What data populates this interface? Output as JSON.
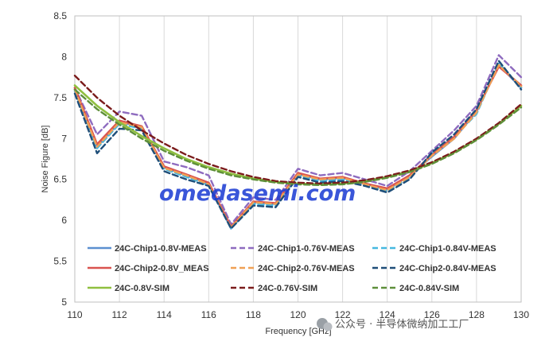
{
  "chart_data": {
    "type": "line",
    "xlabel": "Frequency [GHz]",
    "ylabel": "Noise Figure [dB]",
    "xlim": [
      110,
      130
    ],
    "ylim": [
      5,
      8.5
    ],
    "x_ticks": [
      "110",
      "112",
      "114",
      "116",
      "118",
      "120",
      "122",
      "124",
      "126",
      "128",
      "130"
    ],
    "y_ticks": [
      "5",
      "5.5",
      "6",
      "6.5",
      "7",
      "7.5",
      "8",
      "8.5"
    ],
    "grid": "vertical",
    "legend_placement": "bottom-inside",
    "series": [
      {
        "name": "24C-Chip1-0.8V-MEAS",
        "color": "#5b8fd0",
        "dash": "solid",
        "x": [
          110,
          111,
          112,
          113,
          114,
          115,
          116,
          117,
          118,
          119,
          120,
          121,
          122,
          123,
          124,
          125,
          126,
          127,
          128,
          129,
          130
        ],
        "y": [
          7.6,
          6.9,
          7.2,
          7.15,
          6.65,
          6.55,
          6.45,
          5.9,
          6.22,
          6.2,
          6.57,
          6.5,
          6.52,
          6.45,
          6.38,
          6.55,
          6.78,
          7.0,
          7.33,
          7.9,
          7.62
        ]
      },
      {
        "name": "24C-Chip1-0.76V-MEAS",
        "color": "#8e6bbf",
        "dash": "dash",
        "x": [
          110,
          111,
          112,
          113,
          114,
          115,
          116,
          117,
          118,
          119,
          120,
          121,
          122,
          123,
          124,
          125,
          126,
          127,
          128,
          129,
          130
        ],
        "y": [
          7.62,
          7.05,
          7.33,
          7.28,
          6.72,
          6.65,
          6.55,
          5.95,
          6.28,
          6.25,
          6.63,
          6.55,
          6.58,
          6.5,
          6.42,
          6.6,
          6.85,
          7.1,
          7.4,
          8.02,
          7.75
        ]
      },
      {
        "name": "24C-Chip1-0.84V-MEAS",
        "color": "#46b8e0",
        "dash": "dash",
        "x": [
          110,
          111,
          112,
          113,
          114,
          115,
          116,
          117,
          118,
          119,
          120,
          121,
          122,
          123,
          124,
          125,
          126,
          127,
          128,
          129,
          130
        ],
        "y": [
          7.58,
          6.88,
          7.18,
          7.12,
          6.63,
          6.53,
          6.43,
          5.9,
          6.2,
          6.18,
          6.55,
          6.48,
          6.5,
          6.43,
          6.36,
          6.52,
          6.82,
          7.02,
          7.3,
          7.92,
          7.63
        ]
      },
      {
        "name": "24C-Chip2-0.8V_MEAS",
        "color": "#d9534f",
        "dash": "solid",
        "x": [
          110,
          111,
          112,
          113,
          114,
          115,
          116,
          117,
          118,
          119,
          120,
          121,
          122,
          123,
          124,
          125,
          126,
          127,
          128,
          129,
          130
        ],
        "y": [
          7.62,
          6.93,
          7.22,
          7.15,
          6.66,
          6.56,
          6.46,
          5.92,
          6.23,
          6.21,
          6.58,
          6.51,
          6.53,
          6.45,
          6.39,
          6.55,
          6.8,
          7.02,
          7.35,
          7.88,
          7.65
        ]
      },
      {
        "name": "24C-Chip2-0.76V-MEAS",
        "color": "#f0a054",
        "dash": "dash",
        "x": [
          110,
          111,
          112,
          113,
          114,
          115,
          116,
          117,
          118,
          119,
          120,
          121,
          122,
          123,
          124,
          125,
          126,
          127,
          128,
          129,
          130
        ],
        "y": [
          7.6,
          6.9,
          7.2,
          7.14,
          6.64,
          6.55,
          6.44,
          5.91,
          6.22,
          6.2,
          6.56,
          6.5,
          6.52,
          6.44,
          6.37,
          6.53,
          6.79,
          7.0,
          7.32,
          7.9,
          7.64
        ]
      },
      {
        "name": "24C-Chip2-0.84V-MEAS",
        "color": "#1f4e79",
        "dash": "dash",
        "x": [
          110,
          111,
          112,
          113,
          114,
          115,
          116,
          117,
          118,
          119,
          120,
          121,
          122,
          123,
          124,
          125,
          126,
          127,
          128,
          129,
          130
        ],
        "y": [
          7.55,
          6.82,
          7.12,
          7.1,
          6.6,
          6.5,
          6.42,
          5.9,
          6.18,
          6.16,
          6.53,
          6.46,
          6.48,
          6.42,
          6.34,
          6.5,
          6.83,
          7.05,
          7.36,
          7.95,
          7.6
        ]
      },
      {
        "name": "24C-0.8V-SIM",
        "color": "#8fbf3f",
        "dash": "solid",
        "x": [
          110,
          111,
          112,
          113,
          114,
          115,
          116,
          117,
          118,
          119,
          120,
          121,
          122,
          123,
          124,
          125,
          126,
          127,
          128,
          129,
          130
        ],
        "y": [
          7.65,
          7.4,
          7.2,
          7.03,
          6.88,
          6.75,
          6.65,
          6.57,
          6.51,
          6.47,
          6.45,
          6.44,
          6.45,
          6.48,
          6.53,
          6.6,
          6.7,
          6.83,
          6.99,
          7.18,
          7.4
        ]
      },
      {
        "name": "24C-0.76V-SIM",
        "color": "#7b1c1c",
        "dash": "dash",
        "x": [
          110,
          111,
          112,
          113,
          114,
          115,
          116,
          117,
          118,
          119,
          120,
          121,
          122,
          123,
          124,
          125,
          126,
          127,
          128,
          129,
          130
        ],
        "y": [
          7.77,
          7.5,
          7.28,
          7.1,
          6.94,
          6.8,
          6.69,
          6.6,
          6.53,
          6.48,
          6.46,
          6.45,
          6.46,
          6.49,
          6.54,
          6.61,
          6.71,
          6.84,
          7.0,
          7.19,
          7.42
        ]
      },
      {
        "name": "24C-0.84V-SIM",
        "color": "#5e8f3a",
        "dash": "dash",
        "x": [
          110,
          111,
          112,
          113,
          114,
          115,
          116,
          117,
          118,
          119,
          120,
          121,
          122,
          123,
          124,
          125,
          126,
          127,
          128,
          129,
          130
        ],
        "y": [
          7.6,
          7.36,
          7.17,
          7.0,
          6.85,
          6.73,
          6.63,
          6.55,
          6.5,
          6.46,
          6.44,
          6.43,
          6.44,
          6.47,
          6.52,
          6.59,
          6.69,
          6.82,
          6.98,
          7.17,
          7.38
        ]
      }
    ]
  },
  "watermark": "omedasemi.com",
  "credit": "公众号 · 半导体微纳加工工厂"
}
